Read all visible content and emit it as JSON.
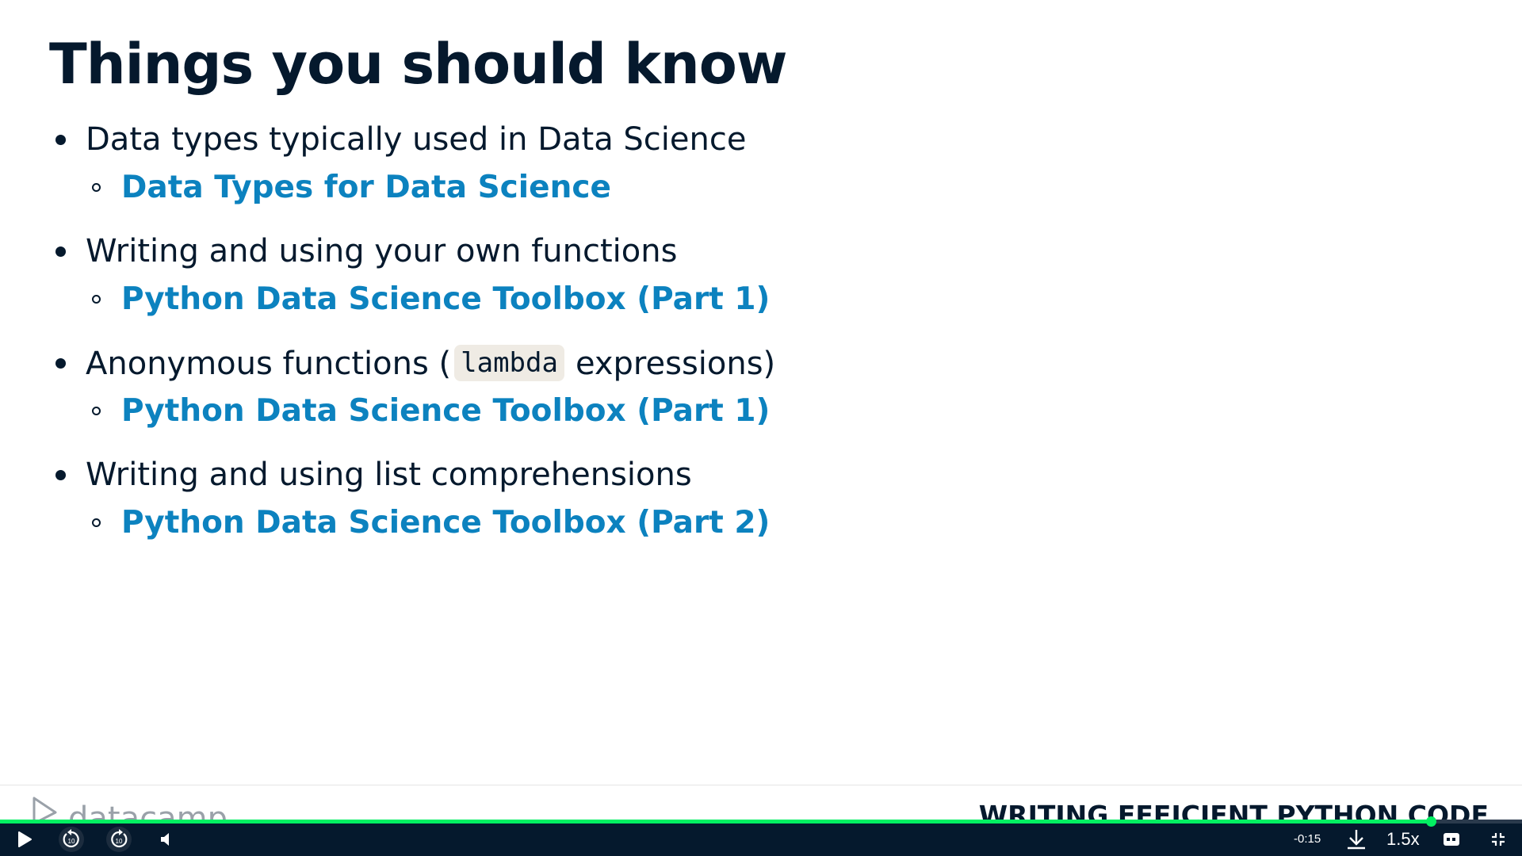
{
  "slide": {
    "title": "Things you should know",
    "items": [
      {
        "text": "Data types typically used in Data Science",
        "link": "Data Types for Data Science"
      },
      {
        "text": "Writing and using your own functions",
        "link": "Python Data Science Toolbox (Part 1)"
      },
      {
        "text_before": "Anonymous functions (",
        "code": "lambda",
        "text_after": "expressions)",
        "link": "Python Data Science Toolbox (Part 1)"
      },
      {
        "text": "Writing and using list comprehensions",
        "link": "Python Data Science Toolbox (Part 2)"
      }
    ]
  },
  "footer": {
    "logo_text": "datacamp",
    "course_name": "WRITING EFFICIENT PYTHON CODE"
  },
  "player": {
    "time_remaining": "-0:15",
    "speed": "1.5x",
    "progress": 0.94,
    "rewind_seconds": "10",
    "forward_seconds": "10",
    "icons": {
      "play": "play-icon",
      "rewind": "rewind-10-icon",
      "forward": "forward-10-icon",
      "volume": "volume-icon",
      "download": "download-icon",
      "captions": "captions-icon",
      "exit_fullscreen": "exit-fullscreen-icon"
    },
    "colors": {
      "bar": "#05192d",
      "progress": "#03ef62"
    }
  },
  "colors": {
    "text": "#05192d",
    "link": "#0c82bf",
    "code_bg": "#efebe4"
  }
}
